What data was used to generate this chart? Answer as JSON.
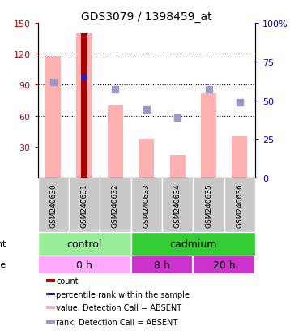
{
  "title": "GDS3079 / 1398459_at",
  "samples": [
    "GSM240630",
    "GSM240631",
    "GSM240632",
    "GSM240633",
    "GSM240634",
    "GSM240635",
    "GSM240636"
  ],
  "pink_bar_values": [
    118,
    140,
    70,
    38,
    22,
    82,
    40
  ],
  "red_bar_values": [
    0,
    140,
    0,
    0,
    0,
    0,
    0
  ],
  "blue_sq_x": [
    1
  ],
  "blue_sq_y": [
    65
  ],
  "light_blue_sq_x": [
    0,
    2,
    3,
    4,
    5,
    6
  ],
  "light_blue_sq_y": [
    62,
    57,
    44,
    39,
    57,
    49
  ],
  "ylim_left": [
    0,
    150
  ],
  "ylim_right": [
    0,
    100
  ],
  "yticks_left": [
    30,
    60,
    90,
    120,
    150
  ],
  "yticks_right": [
    0,
    25,
    50,
    75,
    100
  ],
  "left_axis_color": "#CC0000",
  "right_axis_color": "#0000BB",
  "pink_color": "#FFB0B0",
  "red_color": "#AA0000",
  "blue_sq_color": "#2222BB",
  "light_blue_color": "#9999CC",
  "agent_groups": [
    {
      "label": "control",
      "start": 0,
      "end": 3,
      "color": "#99EE99"
    },
    {
      "label": "cadmium",
      "start": 3,
      "end": 7,
      "color": "#33CC33"
    }
  ],
  "time_groups": [
    {
      "label": "0 h",
      "start": 0,
      "end": 3,
      "color": "#FFAAFF"
    },
    {
      "label": "8 h",
      "start": 3,
      "end": 5,
      "color": "#CC33CC"
    },
    {
      "label": "20 h",
      "start": 5,
      "end": 7,
      "color": "#CC33CC"
    }
  ],
  "legend_colors": [
    "#AA0000",
    "#2222BB",
    "#FFB0B0",
    "#9999CC"
  ],
  "legend_labels": [
    "count",
    "percentile rank within the sample",
    "value, Detection Call = ABSENT",
    "rank, Detection Call = ABSENT"
  ]
}
